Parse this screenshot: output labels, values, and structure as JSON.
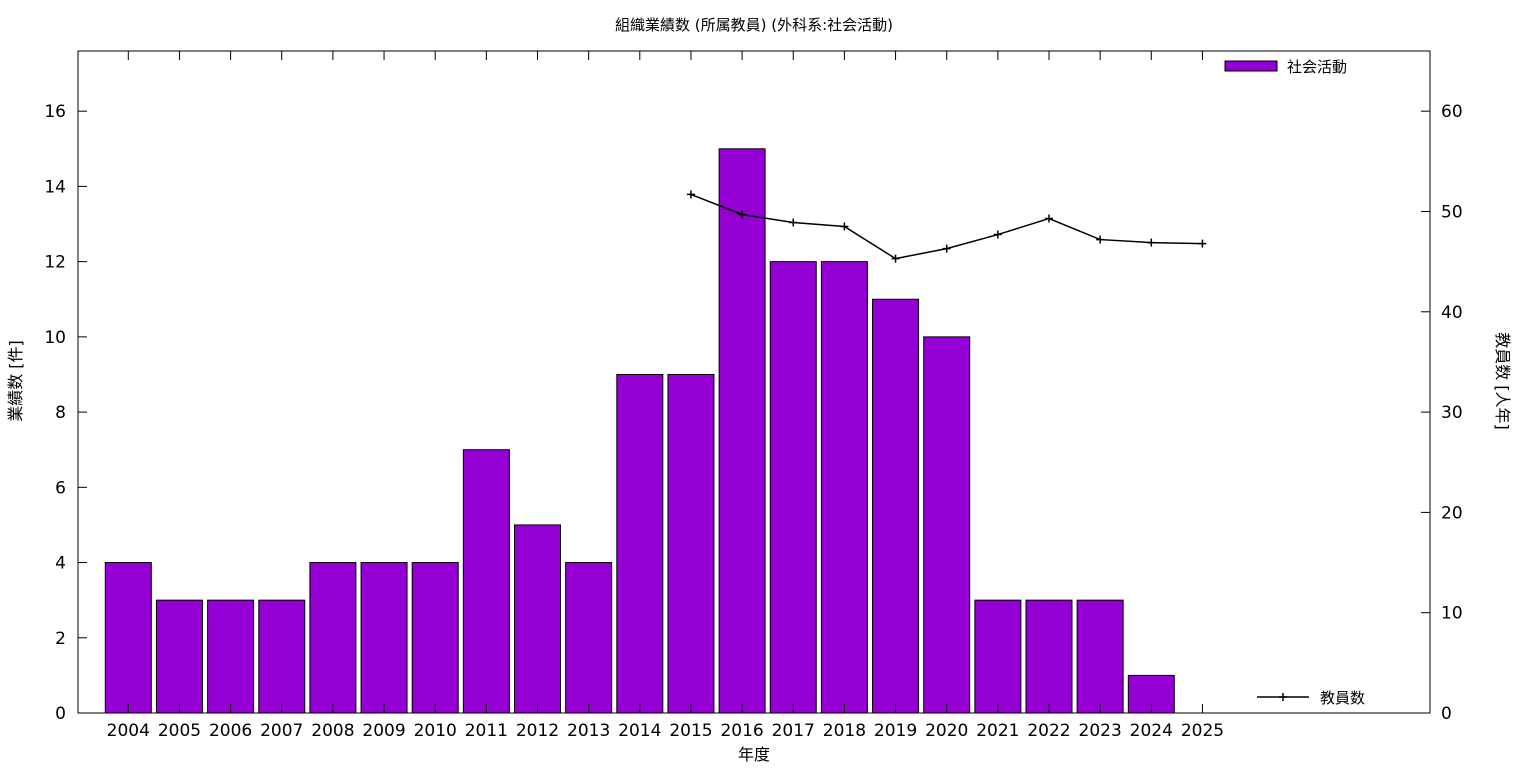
{
  "chart_data": {
    "type": "bar",
    "title": "組織業績数 (所属教員) (外科系:社会活動)",
    "xlabel": "年度",
    "ylabel": "業績数 [件]",
    "y2label": "教員数 [人年]",
    "categories": [
      "2004",
      "2005",
      "2006",
      "2007",
      "2008",
      "2009",
      "2010",
      "2011",
      "2012",
      "2013",
      "2014",
      "2015",
      "2016",
      "2017",
      "2018",
      "2019",
      "2020",
      "2021",
      "2022",
      "2023",
      "2024",
      "2025"
    ],
    "ylim": [
      0,
      17.6
    ],
    "y2lim": [
      0,
      66
    ],
    "yticks": [
      0,
      2,
      4,
      6,
      8,
      10,
      12,
      14,
      16
    ],
    "y2ticks": [
      0,
      10,
      20,
      30,
      40,
      50,
      60
    ],
    "legend_position": "top-right",
    "series": [
      {
        "name": "社会活動",
        "type": "bar",
        "axis": "left",
        "color": "#9400d3",
        "values": [
          4,
          3,
          3,
          3,
          4,
          4,
          4,
          7,
          5,
          4,
          9,
          9,
          15,
          12,
          12,
          11,
          10,
          3,
          3,
          3,
          1,
          null
        ]
      },
      {
        "name": "教員数",
        "type": "line",
        "axis": "right",
        "color": "#000000",
        "marker": "plus",
        "values": [
          null,
          null,
          null,
          null,
          null,
          null,
          null,
          null,
          null,
          null,
          null,
          51.7,
          49.7,
          48.9,
          48.5,
          45.3,
          46.3,
          47.7,
          49.3,
          47.2,
          46.9,
          46.8
        ]
      }
    ]
  }
}
